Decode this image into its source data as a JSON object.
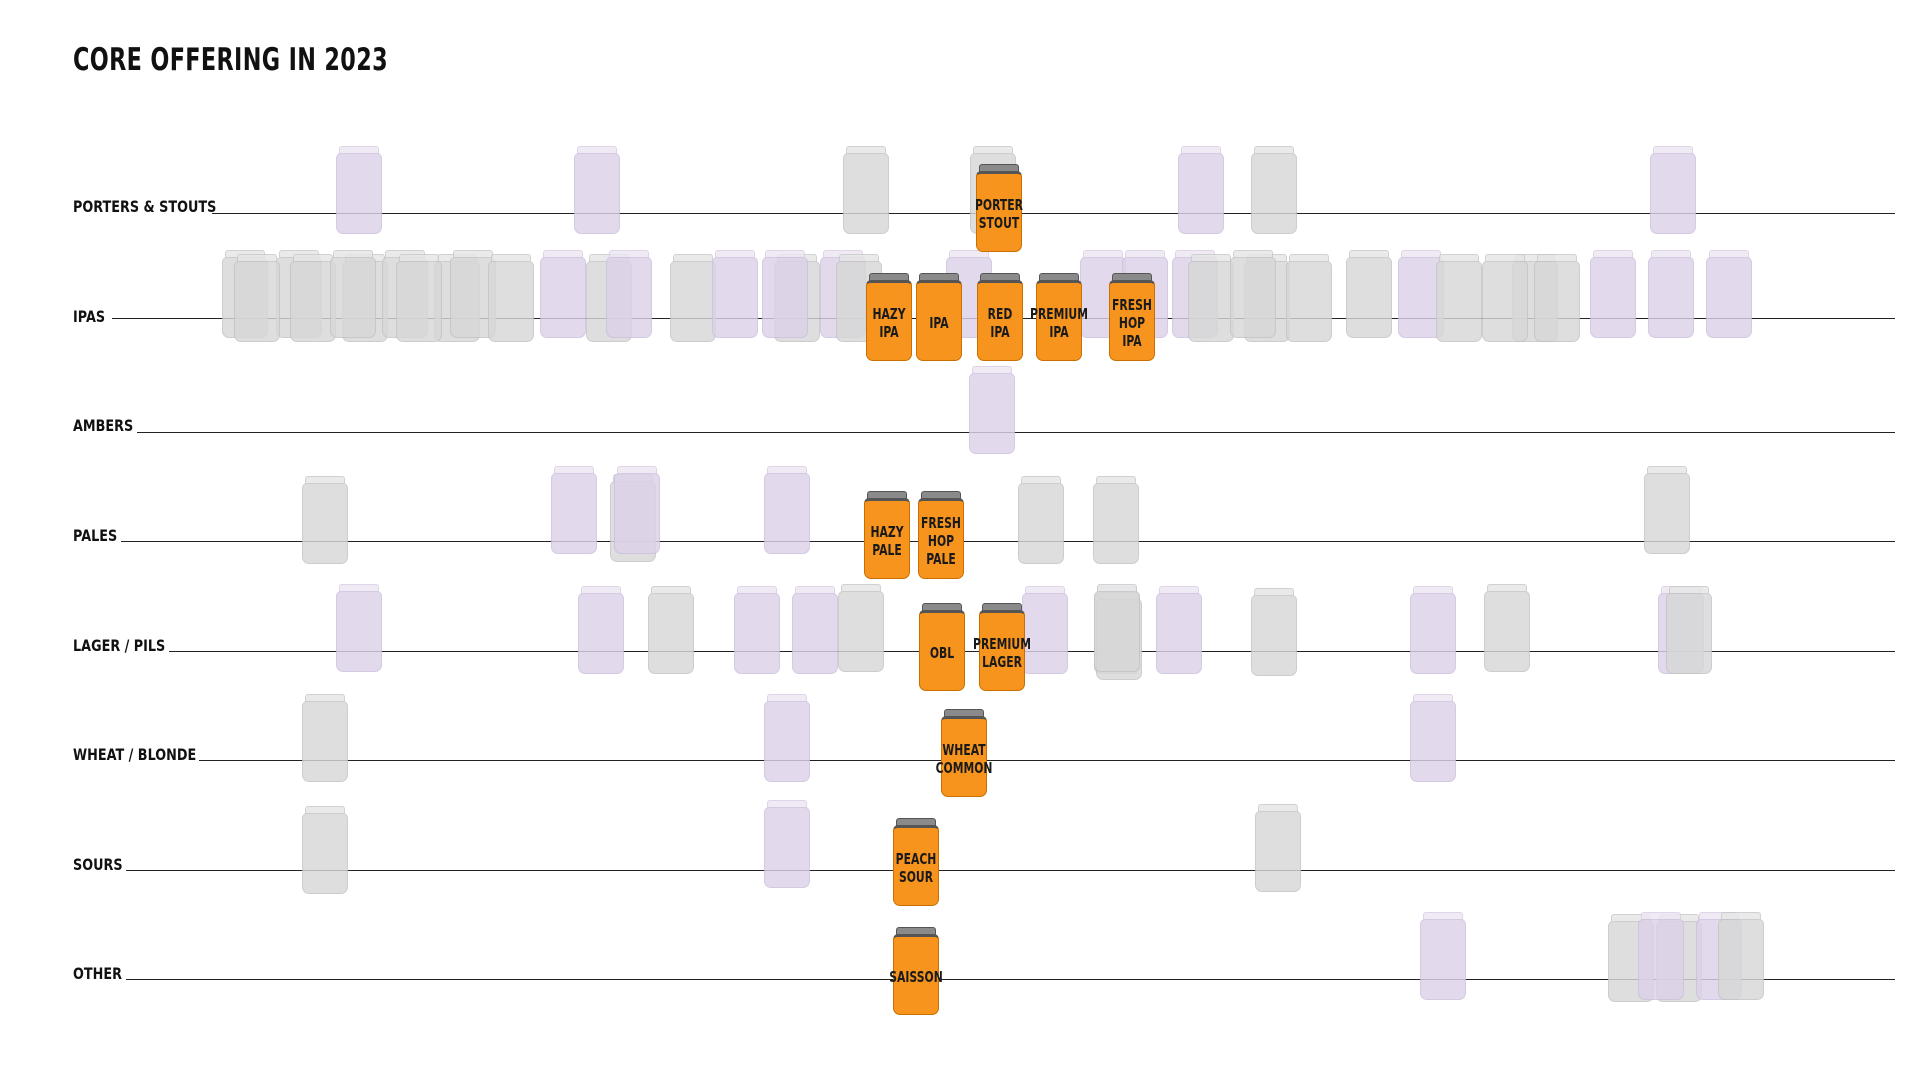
{
  "title": "CORE OFFERING IN 2023",
  "rows": [
    {
      "label": "PORTERS & STOUTS"
    },
    {
      "label": "IPAS"
    },
    {
      "label": "AMBERS"
    },
    {
      "label": "PALES"
    },
    {
      "label": "LAGER / PILS"
    },
    {
      "label": "WHEAT / BLONDE"
    },
    {
      "label": "SOURS"
    },
    {
      "label": "OTHER"
    }
  ],
  "core_cans": [
    {
      "label": "PORTER\nSTOUT",
      "row": "PORTERS & STOUTS"
    },
    {
      "label": "HAZY\nIPA",
      "row": "IPAS"
    },
    {
      "label": "IPA",
      "row": "IPAS"
    },
    {
      "label": "RED\nIPA",
      "row": "IPAS"
    },
    {
      "label": "PREMIUM\nIPA",
      "row": "IPAS"
    },
    {
      "label": "FRESH\nHOP\nIPA",
      "row": "IPAS"
    },
    {
      "label": "HAZY\nPALE",
      "row": "PALES"
    },
    {
      "label": "FRESH\nHOP\nPALE",
      "row": "PALES"
    },
    {
      "label": "OBL",
      "row": "LAGER / PILS"
    },
    {
      "label": "PREMIUM\nLAGER",
      "row": "LAGER / PILS"
    },
    {
      "label": "WHEAT\nCOMMON",
      "row": "WHEAT / BLONDE"
    },
    {
      "label": "PEACH\nSOUR",
      "row": "SOURS"
    },
    {
      "label": "SAISSON",
      "row": "OTHER"
    }
  ],
  "colors": {
    "core_can": "#f7941d",
    "background_can_grey": "#d7d7d7",
    "background_can_purple": "#dcd1e8",
    "text": "#111111"
  }
}
